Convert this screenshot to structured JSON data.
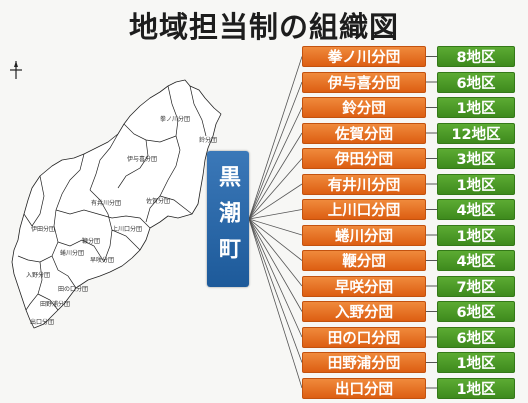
{
  "title": "地域担当制の組織図",
  "town": "黒潮町",
  "branches": [
    {
      "name": "拳ノ川分団",
      "count": "8地区"
    },
    {
      "name": "伊与喜分団",
      "count": "6地区"
    },
    {
      "name": "鈴分団",
      "count": "1地区"
    },
    {
      "name": "佐賀分団",
      "count": "12地区"
    },
    {
      "name": "伊田分団",
      "count": "3地区"
    },
    {
      "name": "有井川分団",
      "count": "1地区"
    },
    {
      "name": "上川口分団",
      "count": "4地区"
    },
    {
      "name": "蜷川分団",
      "count": "1地区"
    },
    {
      "name": "鞭分団",
      "count": "4地区"
    },
    {
      "name": "早咲分団",
      "count": "7地区"
    },
    {
      "name": "入野分団",
      "count": "6地区"
    },
    {
      "name": "田の口分団",
      "count": "6地区"
    },
    {
      "name": "田野浦分団",
      "count": "1地区"
    },
    {
      "name": "出口分団",
      "count": "1地区"
    }
  ],
  "map_labels": [
    "拳ノ川分団",
    "鈴分団",
    "伊与喜分団",
    "佐賀分団",
    "有井川分団",
    "伊田分団",
    "鞭分団",
    "上川口分団",
    "蜷川分団",
    "早咲分団",
    "入野分団",
    "田の口分団",
    "田野浦分団",
    "出口分団"
  ],
  "colors": {
    "branch": "#e8742a",
    "count": "#4d9a27",
    "town": "#2b6aab"
  }
}
